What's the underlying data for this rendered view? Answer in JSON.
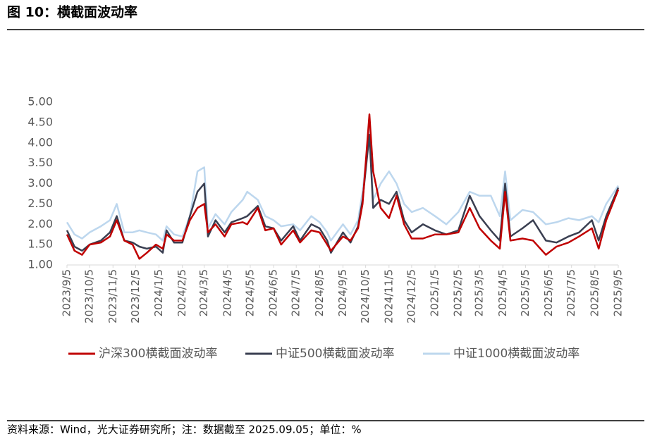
{
  "header": {
    "title": "图 10：横截面波动率"
  },
  "chart_data": {
    "type": "line",
    "x": [
      "2023/9/5",
      "2023/9/15",
      "2023/9/25",
      "2023/10/5",
      "2023/10/20",
      "2023/11/1",
      "2023/11/10",
      "2023/11/20",
      "2023/12/1",
      "2023/12/10",
      "2023/12/20",
      "2024/1/1",
      "2024/1/10",
      "2024/1/15",
      "2024/1/25",
      "2024/2/5",
      "2024/2/15",
      "2024/2/25",
      "2024/3/5",
      "2024/3/10",
      "2024/3/20",
      "2024/4/1",
      "2024/4/10",
      "2024/4/25",
      "2024/5/1",
      "2024/5/15",
      "2024/5/25",
      "2024/6/5",
      "2024/6/15",
      "2024/7/1",
      "2024/7/10",
      "2024/7/25",
      "2024/8/5",
      "2024/8/15",
      "2024/8/20",
      "2024/9/5",
      "2024/9/15",
      "2024/9/25",
      "2024/10/1",
      "2024/10/10",
      "2024/10/15",
      "2024/10/25",
      "2024/11/5",
      "2024/11/15",
      "2024/11/25",
      "2024/12/5",
      "2024/12/20",
      "2025/1/5",
      "2025/1/20",
      "2025/2/5",
      "2025/2/20",
      "2025/3/5",
      "2025/3/20",
      "2025/4/1",
      "2025/4/8",
      "2025/4/15",
      "2025/5/1",
      "2025/5/15",
      "2025/6/1",
      "2025/6/15",
      "2025/7/1",
      "2025/7/15",
      "2025/8/1",
      "2025/8/10",
      "2025/8/20",
      "2025/9/5"
    ],
    "series": [
      {
        "name": "沪深300横截面波动率",
        "color": "#c00000",
        "values": [
          1.75,
          1.35,
          1.25,
          1.5,
          1.55,
          1.7,
          2.1,
          1.6,
          1.5,
          1.15,
          1.3,
          1.5,
          1.4,
          1.75,
          1.6,
          1.6,
          2.1,
          2.4,
          2.5,
          1.8,
          2.0,
          1.7,
          2.0,
          2.05,
          2.0,
          2.4,
          1.85,
          1.9,
          1.5,
          1.85,
          1.55,
          1.85,
          1.8,
          1.5,
          1.35,
          1.7,
          1.6,
          1.9,
          2.5,
          4.7,
          3.3,
          2.4,
          2.15,
          2.7,
          2.0,
          1.65,
          1.65,
          1.75,
          1.75,
          1.8,
          2.4,
          1.9,
          1.6,
          1.4,
          2.8,
          1.6,
          1.65,
          1.6,
          1.25,
          1.45,
          1.55,
          1.7,
          1.9,
          1.4,
          2.1,
          2.85
        ]
      },
      {
        "name": "中证500横截面波动率",
        "color": "#3a3f51",
        "values": [
          1.85,
          1.45,
          1.35,
          1.5,
          1.6,
          1.8,
          2.2,
          1.6,
          1.55,
          1.45,
          1.4,
          1.45,
          1.3,
          1.85,
          1.55,
          1.55,
          2.2,
          2.8,
          3.0,
          1.7,
          2.1,
          1.8,
          2.05,
          2.15,
          2.2,
          2.45,
          1.95,
          1.9,
          1.6,
          1.95,
          1.6,
          2.0,
          1.9,
          1.6,
          1.3,
          1.8,
          1.55,
          1.95,
          2.6,
          4.2,
          2.4,
          2.6,
          2.5,
          2.8,
          2.1,
          1.8,
          2.0,
          1.85,
          1.75,
          1.85,
          2.7,
          2.2,
          1.85,
          1.6,
          3.0,
          1.7,
          1.9,
          2.1,
          1.6,
          1.55,
          1.7,
          1.8,
          2.1,
          1.6,
          2.2,
          2.9
        ]
      },
      {
        "name": "中证1000横截面波动率",
        "color": "#bdd7ee",
        "values": [
          2.05,
          1.75,
          1.65,
          1.8,
          1.95,
          2.1,
          2.5,
          1.8,
          1.8,
          1.85,
          1.8,
          1.75,
          1.6,
          1.95,
          1.75,
          1.7,
          2.2,
          3.3,
          3.4,
          1.9,
          2.25,
          2.0,
          2.3,
          2.6,
          2.8,
          2.6,
          2.2,
          2.1,
          1.95,
          2.0,
          1.85,
          2.2,
          2.05,
          1.8,
          1.6,
          2.0,
          1.75,
          2.1,
          2.8,
          4.35,
          2.6,
          3.0,
          3.3,
          3.0,
          2.5,
          2.3,
          2.4,
          2.2,
          2.0,
          2.3,
          2.8,
          2.7,
          2.7,
          2.2,
          3.3,
          2.1,
          2.35,
          2.3,
          2.0,
          2.05,
          2.15,
          2.1,
          2.2,
          2.05,
          2.5,
          2.95
        ]
      }
    ],
    "xlim": [
      "2023/9/5",
      "2025/9/5"
    ],
    "xticks": [
      "2023/9/5",
      "2023/10/5",
      "2023/11/5",
      "2023/12/5",
      "2024/1/5",
      "2024/2/5",
      "2024/3/5",
      "2024/4/5",
      "2024/5/5",
      "2024/6/5",
      "2024/7/5",
      "2024/8/5",
      "2024/9/5",
      "2024/10/5",
      "2024/11/5",
      "2024/12/5",
      "2025/1/5",
      "2025/2/5",
      "2025/3/5",
      "2025/4/5",
      "2025/5/5",
      "2025/6/5",
      "2025/7/5",
      "2025/8/5",
      "2025/9/5"
    ],
    "ylim": [
      1,
      5
    ],
    "yticks": [
      {
        "value": 1,
        "label": "1.00"
      },
      {
        "value": 1.5,
        "label": "1.50"
      },
      {
        "value": 2,
        "label": "2.00"
      },
      {
        "value": 2.5,
        "label": "2.50"
      },
      {
        "value": 3,
        "label": "3.00"
      },
      {
        "value": 3.5,
        "label": "3.50"
      },
      {
        "value": 4,
        "label": "4.00"
      },
      {
        "value": 4.5,
        "label": "4.50"
      },
      {
        "value": 5,
        "label": "5.00"
      }
    ],
    "legend": "bottom"
  },
  "footer": {
    "source": "资料来源：Wind，光大证券研究所；注：数据截至 2025.09.05；单位：%"
  }
}
